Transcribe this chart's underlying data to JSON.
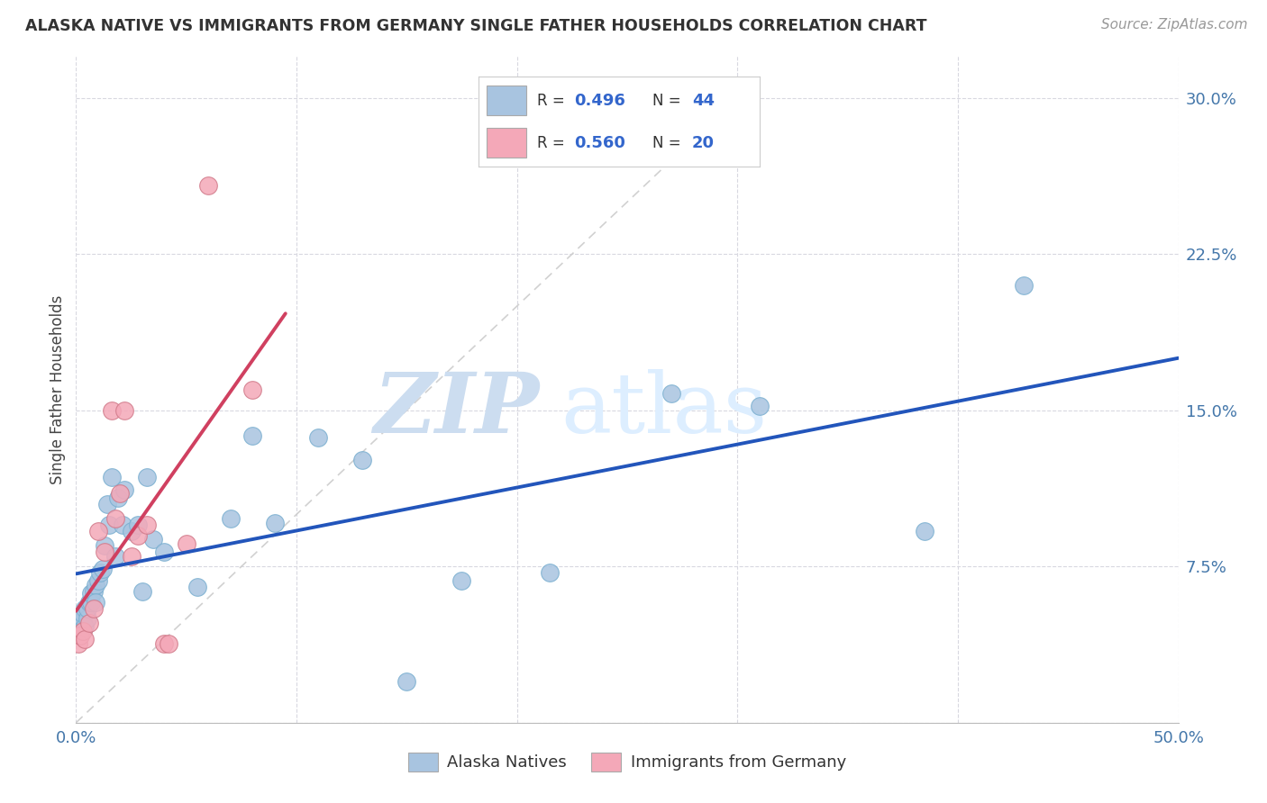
{
  "title": "ALASKA NATIVE VS IMMIGRANTS FROM GERMANY SINGLE FATHER HOUSEHOLDS CORRELATION CHART",
  "source": "Source: ZipAtlas.com",
  "ylabel": "Single Father Households",
  "xlim": [
    0.0,
    0.5
  ],
  "ylim": [
    0.0,
    0.32
  ],
  "xticks": [
    0.0,
    0.1,
    0.2,
    0.3,
    0.4,
    0.5
  ],
  "xticklabels": [
    "0.0%",
    "",
    "",
    "",
    "",
    "50.0%"
  ],
  "yticks": [
    0.0,
    0.075,
    0.15,
    0.225,
    0.3
  ],
  "yticklabels": [
    "",
    "7.5%",
    "15.0%",
    "22.5%",
    "30.0%"
  ],
  "legend_labels": [
    "Alaska Natives",
    "Immigrants from Germany"
  ],
  "blue_color": "#a8c4e0",
  "pink_color": "#f4a8b8",
  "blue_line_color": "#2255bb",
  "pink_line_color": "#d04060",
  "diagonal_color": "#cccccc",
  "watermark_zip": "ZIP",
  "watermark_atlas": "atlas",
  "blue_R": 0.496,
  "blue_N": 44,
  "pink_R": 0.56,
  "pink_N": 20,
  "blue_scatter_x": [
    0.001,
    0.002,
    0.003,
    0.003,
    0.004,
    0.004,
    0.005,
    0.005,
    0.006,
    0.007,
    0.007,
    0.008,
    0.009,
    0.009,
    0.01,
    0.011,
    0.012,
    0.013,
    0.014,
    0.015,
    0.016,
    0.018,
    0.019,
    0.021,
    0.022,
    0.025,
    0.028,
    0.03,
    0.032,
    0.035,
    0.04,
    0.055,
    0.07,
    0.08,
    0.09,
    0.11,
    0.13,
    0.15,
    0.175,
    0.215,
    0.27,
    0.31,
    0.385,
    0.43
  ],
  "blue_scatter_y": [
    0.048,
    0.044,
    0.05,
    0.052,
    0.046,
    0.055,
    0.05,
    0.055,
    0.058,
    0.058,
    0.062,
    0.063,
    0.066,
    0.058,
    0.068,
    0.072,
    0.074,
    0.085,
    0.105,
    0.095,
    0.118,
    0.08,
    0.108,
    0.095,
    0.112,
    0.092,
    0.095,
    0.063,
    0.118,
    0.088,
    0.082,
    0.065,
    0.098,
    0.138,
    0.096,
    0.137,
    0.126,
    0.02,
    0.068,
    0.072,
    0.158,
    0.152,
    0.092,
    0.21
  ],
  "pink_scatter_x": [
    0.001,
    0.002,
    0.003,
    0.004,
    0.006,
    0.008,
    0.01,
    0.013,
    0.016,
    0.018,
    0.02,
    0.022,
    0.025,
    0.028,
    0.032,
    0.04,
    0.042,
    0.05,
    0.06,
    0.08
  ],
  "pink_scatter_y": [
    0.038,
    0.042,
    0.044,
    0.04,
    0.048,
    0.055,
    0.092,
    0.082,
    0.15,
    0.098,
    0.11,
    0.15,
    0.08,
    0.09,
    0.095,
    0.038,
    0.038,
    0.086,
    0.258,
    0.16
  ],
  "blue_line_x": [
    0.0,
    0.5
  ],
  "pink_line_x": [
    0.0,
    0.095
  ]
}
